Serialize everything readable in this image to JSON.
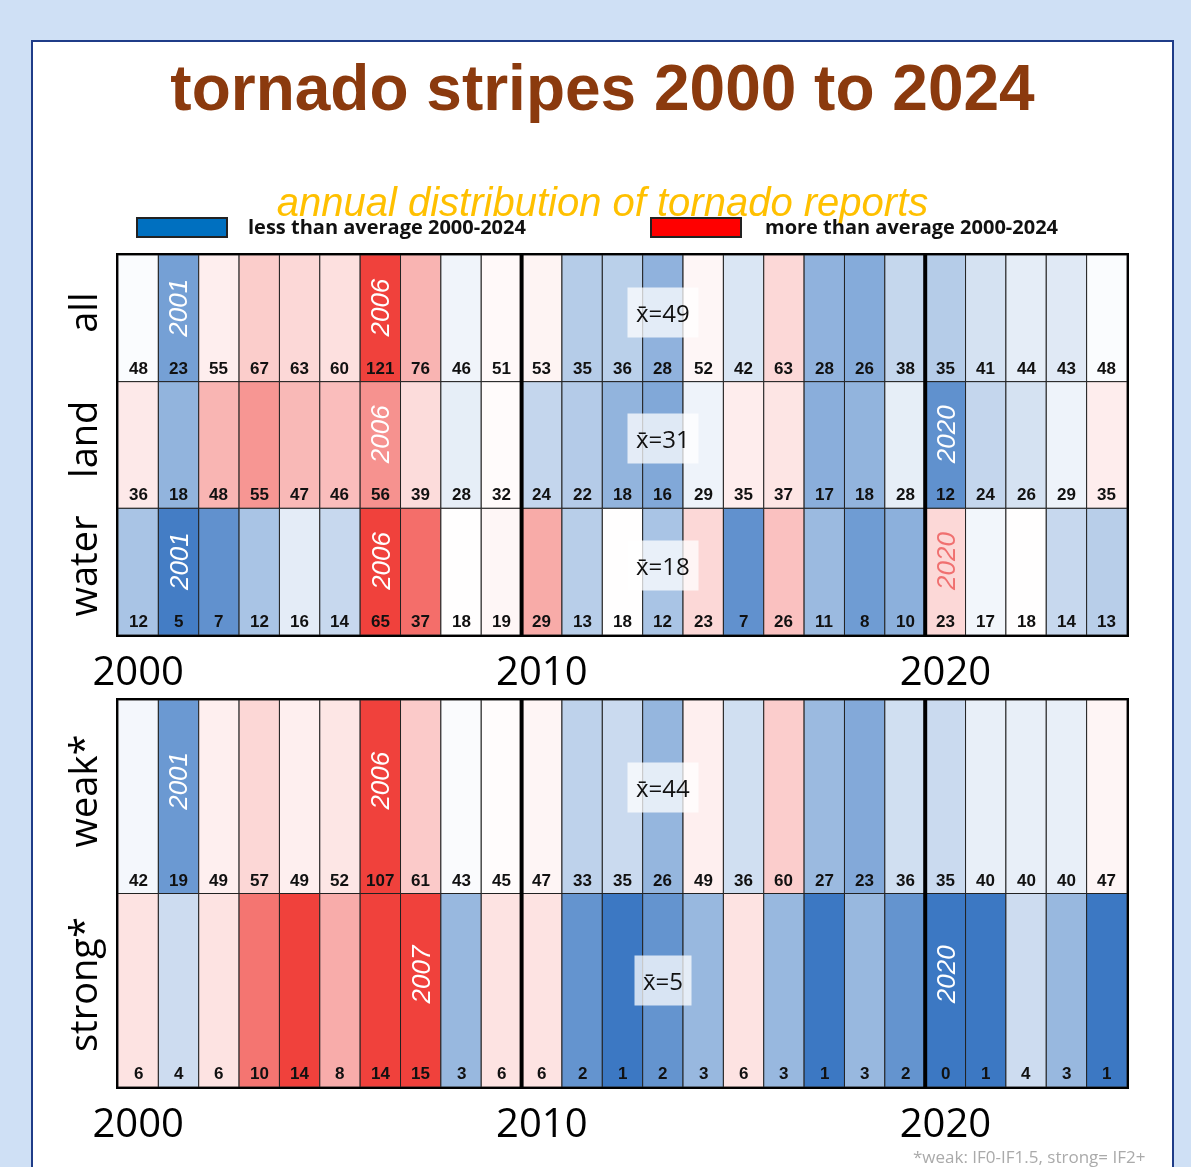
{
  "chart_data": [
    {
      "type": "heatmap",
      "title": "tornado stripes 2000 to 2024",
      "subtitle": "annual distribution of tornado reports",
      "x": [
        2000,
        2001,
        2002,
        2003,
        2004,
        2005,
        2006,
        2007,
        2008,
        2009,
        2010,
        2011,
        2012,
        2013,
        2014,
        2015,
        2016,
        2017,
        2018,
        2019,
        2020,
        2021,
        2022,
        2023,
        2024
      ],
      "xlim": [
        1999.5,
        2024.5
      ],
      "xticks": [
        2000,
        2010,
        2020
      ],
      "y_categories": [
        "all",
        "land",
        "water"
      ],
      "cells": [
        [
          48,
          23,
          55,
          67,
          63,
          60,
          121,
          76,
          46,
          51,
          53,
          35,
          36,
          28,
          52,
          42,
          63,
          28,
          26,
          38,
          35,
          41,
          44,
          43,
          48
        ],
        [
          36,
          18,
          48,
          55,
          47,
          46,
          56,
          39,
          28,
          32,
          24,
          22,
          18,
          16,
          29,
          35,
          37,
          17,
          18,
          28,
          12,
          24,
          26,
          29,
          35
        ],
        [
          12,
          5,
          7,
          12,
          16,
          14,
          65,
          37,
          18,
          19,
          29,
          13,
          18,
          12,
          23,
          7,
          26,
          11,
          8,
          10,
          23,
          17,
          18,
          14,
          13
        ]
      ],
      "data_labels": true,
      "ref_lines": [
        {
          "axis": "x",
          "value": 2009.5
        },
        {
          "axis": "x",
          "value": 2019.5
        }
      ],
      "annotations": [
        "x̄=49",
        "x̄=31",
        "x̄=18",
        "2006",
        "2001",
        "2020",
        "2006",
        "2020",
        "2006",
        "2001",
        "less than average 2000-2024",
        "more than average 2000-2024"
      ]
    },
    {
      "type": "heatmap",
      "x": [
        2000,
        2001,
        2002,
        2003,
        2004,
        2005,
        2006,
        2007,
        2008,
        2009,
        2010,
        2011,
        2012,
        2013,
        2014,
        2015,
        2016,
        2017,
        2018,
        2019,
        2020,
        2021,
        2022,
        2023,
        2024
      ],
      "xlim": [
        1999.5,
        2024.5
      ],
      "xticks": [
        2000,
        2010,
        2020
      ],
      "y_categories": [
        "weak*",
        "strong*"
      ],
      "cells": [
        [
          42,
          19,
          49,
          57,
          49,
          52,
          107,
          61,
          43,
          45,
          47,
          33,
          35,
          26,
          49,
          36,
          60,
          27,
          23,
          36,
          35,
          40,
          40,
          40,
          47
        ],
        [
          6,
          4,
          6,
          10,
          14,
          8,
          14,
          15,
          3,
          6,
          6,
          2,
          1,
          2,
          3,
          6,
          3,
          1,
          3,
          2,
          0,
          1,
          4,
          3,
          1
        ]
      ],
      "data_labels": true,
      "ref_lines": [
        {
          "axis": "x",
          "value": 2009.5
        },
        {
          "axis": "x",
          "value": 2019.5
        }
      ],
      "annotations": [
        "x̄=44",
        "x̄=5",
        "2006",
        "2001",
        "2020",
        "2007",
        "*weak: IF0-IF1.5, strong= IF2+"
      ]
    }
  ]
}
